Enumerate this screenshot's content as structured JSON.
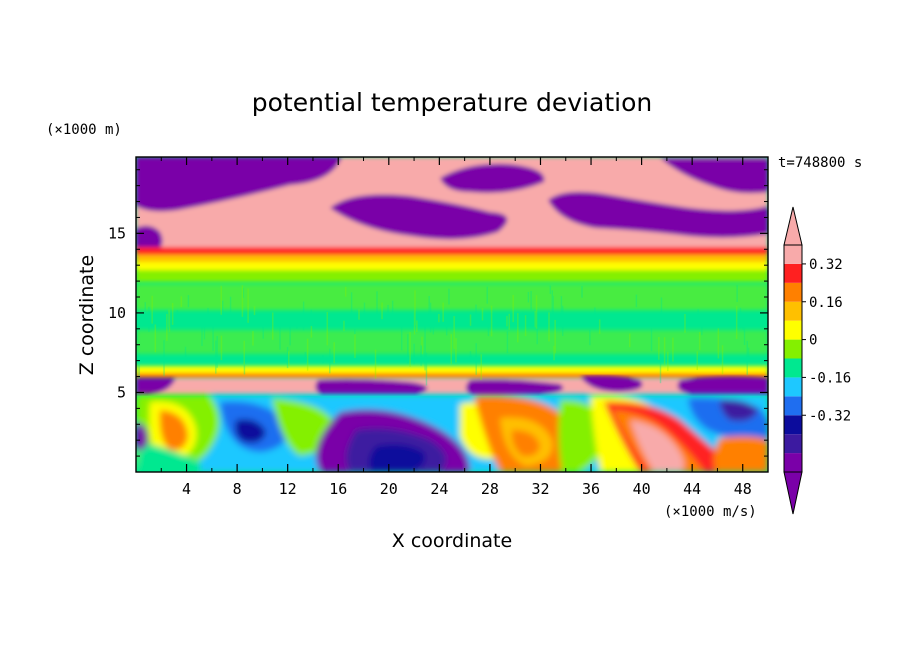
{
  "chart_data": {
    "type": "heatmap",
    "title": "potential temperature deviation",
    "xlabel": "X coordinate",
    "ylabel": "Z coordinate",
    "x_unit": "(×1000 m/s)",
    "y_unit": "(×1000 m)",
    "time_label": "t=748800 s",
    "xlim": [
      0,
      50
    ],
    "ylim": [
      0,
      19.8
    ],
    "x_ticks": [
      "4",
      "8",
      "12",
      "16",
      "20",
      "24",
      "28",
      "32",
      "36",
      "40",
      "44",
      "48"
    ],
    "y_ticks": [
      "5",
      "10",
      "15"
    ],
    "colorbar": {
      "levels": [
        -0.48,
        -0.4,
        -0.32,
        -0.24,
        -0.16,
        -0.08,
        0,
        0.08,
        0.16,
        0.24,
        0.32,
        0.4
      ],
      "tick_labels": [
        "0.32",
        "0.16",
        "0",
        "-0.16",
        "-0.32"
      ],
      "colors_bottom_to_top": [
        "#7a00a8",
        "#3c1aa0",
        "#0c0c9c",
        "#1f6ef0",
        "#1ec8ff",
        "#00e890",
        "#84f000",
        "#ffff00",
        "#ffc000",
        "#ff8000",
        "#ff2020",
        "#f8aaaa"
      ]
    },
    "bands": [
      {
        "z_range": [
          0,
          5
        ],
        "description": "turbulent eddies spanning full color range"
      },
      {
        "z_range": [
          5,
          6.2
        ],
        "value": "above 0.4 with patches below -0.48"
      },
      {
        "z_range": [
          6.2,
          12.8
        ],
        "value": "around 0"
      },
      {
        "z_range": [
          12.8,
          14
        ],
        "value": "0.16 to 0.4"
      },
      {
        "z_range": [
          14,
          19.8
        ],
        "value": "above 0.4 with patches below -0.48"
      }
    ]
  }
}
